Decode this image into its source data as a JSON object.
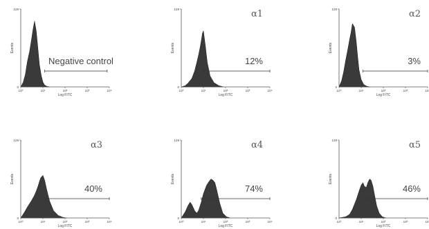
{
  "chart_data": [
    {
      "type": "area",
      "title": "",
      "xlabel": "Log FITC",
      "ylabel": "Events",
      "x_scale": "log",
      "xlim": [
        1,
        10000
      ],
      "ylim": [
        0,
        128
      ],
      "x_ticks": [
        "10⁰",
        "10¹",
        "10²",
        "10³",
        "10⁴"
      ],
      "y_ticks": [
        "0",
        "128"
      ],
      "annotation": "Negative control",
      "gate": [
        12,
        8000
      ],
      "series": [
        {
          "x": [
            1,
            1.3,
            1.6,
            2,
            2.5,
            3,
            3.6,
            4.2,
            5,
            6,
            7,
            8.5,
            10,
            12,
            15,
            20
          ],
          "values": [
            0,
            8,
            20,
            42,
            58,
            76,
            95,
            108,
            92,
            62,
            36,
            18,
            8,
            3,
            1,
            0
          ]
        }
      ]
    },
    {
      "type": "area",
      "title": "α1",
      "xlabel": "Log FITC",
      "ylabel": "Events",
      "x_scale": "log",
      "xlim": [
        1,
        10000
      ],
      "ylim": [
        0,
        128
      ],
      "x_ticks": [
        "10⁰",
        "10¹",
        "10²",
        "10³",
        "10⁴"
      ],
      "y_ticks": [
        "0",
        "128"
      ],
      "annotation": "12%",
      "gate": [
        10,
        10000
      ],
      "series": [
        {
          "x": [
            1,
            1.5,
            2,
            3,
            4,
            5,
            6,
            7,
            8,
            9,
            10,
            12,
            15,
            20,
            30,
            50,
            80
          ],
          "values": [
            0,
            2,
            6,
            14,
            26,
            40,
            52,
            64,
            76,
            88,
            92,
            70,
            40,
            18,
            7,
            2,
            0
          ]
        }
      ]
    },
    {
      "type": "area",
      "title": "α2",
      "xlabel": "Log FITC",
      "ylabel": "Events",
      "x_scale": "log",
      "xlim": [
        1,
        10000
      ],
      "ylim": [
        0,
        128
      ],
      "x_ticks": [
        "10⁰",
        "10¹",
        "10²",
        "10³",
        "10⁴"
      ],
      "y_ticks": [
        "0",
        "128"
      ],
      "annotation": "3%",
      "gate": [
        12,
        10000
      ],
      "series": [
        {
          "x": [
            1,
            1.3,
            1.6,
            2,
            2.5,
            3,
            3.5,
            4,
            5,
            6,
            7,
            8,
            10,
            13,
            18,
            25
          ],
          "values": [
            0,
            10,
            24,
            44,
            62,
            78,
            90,
            104,
            98,
            74,
            48,
            28,
            12,
            4,
            1,
            0
          ]
        }
      ]
    },
    {
      "type": "area",
      "title": "α3",
      "xlabel": "Log FITC",
      "ylabel": "Events",
      "x_scale": "log",
      "xlim": [
        1,
        10000
      ],
      "ylim": [
        0,
        128
      ],
      "x_ticks": [
        "10⁰",
        "10¹",
        "10²",
        "10³",
        "10⁴"
      ],
      "y_ticks": [
        "0",
        "128"
      ],
      "annotation": "40%",
      "gate": [
        10,
        10000
      ],
      "series": [
        {
          "x": [
            1,
            1.5,
            2,
            3,
            4,
            5,
            6,
            7,
            8,
            10,
            12,
            15,
            20,
            30,
            50,
            80,
            120
          ],
          "values": [
            0,
            10,
            18,
            28,
            36,
            44,
            52,
            60,
            66,
            70,
            62,
            46,
            28,
            12,
            4,
            1,
            0
          ]
        }
      ]
    },
    {
      "type": "area",
      "title": "α4",
      "xlabel": "Log FITC",
      "ylabel": "Events",
      "x_scale": "log",
      "xlim": [
        1,
        10000
      ],
      "ylim": [
        0,
        128
      ],
      "x_ticks": [
        "10⁰",
        "10¹",
        "10²",
        "10³",
        "10⁴"
      ],
      "y_ticks": [
        "0",
        "128"
      ],
      "annotation": "74%",
      "gate": [
        8,
        10000
      ],
      "series": [
        {
          "x": [
            1,
            1.5,
            2,
            2.5,
            3,
            4,
            5,
            6,
            8,
            10,
            14,
            18,
            22,
            27,
            33,
            40,
            55,
            75,
            110,
            160
          ],
          "values": [
            0,
            10,
            20,
            26,
            22,
            12,
            8,
            12,
            26,
            40,
            54,
            60,
            64,
            62,
            58,
            46,
            24,
            8,
            2,
            0
          ]
        }
      ]
    },
    {
      "type": "area",
      "title": "α5",
      "xlabel": "Log FITC",
      "ylabel": "Events",
      "x_scale": "log",
      "xlim": [
        1,
        10000
      ],
      "ylim": [
        0,
        128
      ],
      "x_ticks": [
        "10⁰",
        "10¹",
        "10²",
        "10³",
        "10⁴"
      ],
      "y_ticks": [
        "0",
        "128"
      ],
      "annotation": "46%",
      "gate": [
        20,
        10000
      ],
      "series": [
        {
          "x": [
            1,
            2,
            3,
            4,
            6,
            8,
            10,
            12,
            14,
            17,
            20,
            24,
            28,
            34,
            40,
            50,
            65,
            90,
            130
          ],
          "values": [
            0,
            2,
            6,
            14,
            30,
            44,
            54,
            58,
            52,
            50,
            58,
            64,
            62,
            52,
            38,
            20,
            8,
            2,
            0
          ]
        }
      ]
    }
  ]
}
